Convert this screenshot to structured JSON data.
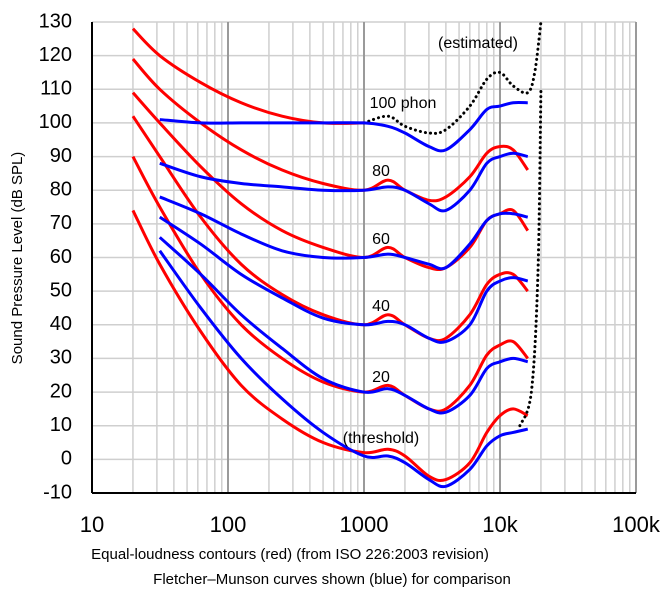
{
  "chart_data": {
    "type": "line",
    "y_label": "Sound Pressure Level (dB SPL)",
    "captions": [
      "Equal-loudness contours (red) (from ISO 226:2003 revision)",
      "Fletcher–Munson curves shown (blue) for comparison"
    ],
    "x_log": true,
    "xlim": [
      10,
      100000
    ],
    "ylim": [
      -10,
      130
    ],
    "xticks": [
      10,
      100,
      1000,
      {
        "value": 10000,
        "label": "10k"
      },
      {
        "value": 100000,
        "label": "100k"
      }
    ],
    "yticks": [
      -10,
      0,
      10,
      20,
      30,
      40,
      50,
      60,
      70,
      80,
      90,
      100,
      110,
      120,
      130
    ],
    "xgrid_minor": [
      20,
      30,
      40,
      50,
      60,
      70,
      80,
      90,
      200,
      300,
      400,
      500,
      600,
      700,
      800,
      900,
      2000,
      3000,
      4000,
      5000,
      6000,
      7000,
      8000,
      9000,
      20000,
      30000,
      40000,
      50000,
      60000,
      70000,
      80000,
      90000
    ],
    "grid": true,
    "series": [
      {
        "color": "#ff0000",
        "style": "solid",
        "x": [
          20,
          31.5,
          63,
          125,
          250,
          500,
          1000,
          1500,
          2000,
          3000,
          4000,
          6000,
          8000,
          10000,
          12500,
          16000
        ],
        "values": [
          74,
          58,
          38,
          22,
          12,
          5,
          2,
          3,
          1,
          -5,
          -6,
          -1,
          8,
          13,
          15,
          13
        ]
      },
      {
        "color": "#ff0000",
        "style": "solid",
        "x": [
          20,
          31.5,
          63,
          125,
          250,
          500,
          1000,
          1500,
          2000,
          3000,
          4000,
          6000,
          8000,
          10000,
          12500,
          16000
        ],
        "values": [
          90,
          75,
          55,
          40,
          30,
          23,
          20,
          22,
          19,
          15,
          15,
          22,
          31,
          34,
          35,
          30
        ]
      },
      {
        "color": "#ff0000",
        "style": "solid",
        "x": [
          20,
          31.5,
          63,
          125,
          250,
          500,
          1000,
          1500,
          2000,
          3000,
          4000,
          6000,
          8000,
          10000,
          12500,
          16000
        ],
        "values": [
          102,
          90,
          72,
          58,
          49,
          43,
          40,
          43,
          40,
          36,
          36,
          43,
          52,
          55,
          55,
          50
        ]
      },
      {
        "color": "#ff0000",
        "style": "solid",
        "x": [
          20,
          31.5,
          63,
          125,
          250,
          500,
          1000,
          1500,
          2000,
          3000,
          4000,
          6000,
          8000,
          10000,
          12500,
          16000
        ],
        "values": [
          109,
          100,
          87,
          76,
          68,
          63,
          60,
          63,
          60,
          57,
          57,
          63,
          71,
          73,
          74,
          68
        ]
      },
      {
        "color": "#ff0000",
        "style": "solid",
        "x": [
          20,
          31.5,
          63,
          125,
          250,
          500,
          1000,
          1500,
          2000,
          3000,
          4000,
          6000,
          8000,
          10000,
          12500,
          16000
        ],
        "values": [
          119,
          110,
          100,
          92,
          86,
          82,
          80,
          83,
          80,
          77,
          78,
          84,
          91,
          93,
          92,
          86
        ]
      },
      {
        "color": "#ff0000",
        "style": "solid",
        "x": [
          20,
          31.5,
          63,
          125,
          250,
          500,
          1000
        ],
        "values": [
          128,
          120,
          112,
          106,
          102,
          100,
          100
        ]
      },
      {
        "color": "#000000",
        "style": "dotted",
        "x": [
          1000,
          1500,
          2000,
          3000,
          4000,
          6000,
          8000,
          10000,
          12500,
          16000,
          18000,
          20000
        ],
        "values": [
          100,
          102,
          99,
          97,
          98,
          105,
          113,
          115,
          111,
          109,
          115,
          130
        ]
      },
      {
        "color": "#000000",
        "style": "dotted",
        "x": [
          14000,
          17000,
          19000,
          20000
        ],
        "values": [
          10,
          20,
          55,
          110
        ]
      },
      {
        "color": "#0000ff",
        "style": "solid",
        "x": [
          31.5,
          63,
          125,
          250,
          500,
          1000,
          1500,
          2000,
          3000,
          4000,
          6000,
          8000,
          10000,
          12500,
          16000
        ],
        "values": [
          62,
          45,
          30,
          18,
          8,
          1,
          1,
          -1,
          -6,
          -8,
          -3,
          4,
          7,
          8,
          9
        ]
      },
      {
        "color": "#0000ff",
        "style": "solid",
        "x": [
          31.5,
          63,
          125,
          250,
          500,
          1000,
          1500,
          2000,
          3000,
          4000,
          6000,
          8000,
          10000,
          12500,
          16000
        ],
        "values": [
          66,
          55,
          43,
          33,
          24,
          20,
          21,
          19,
          15,
          14,
          19,
          27,
          29,
          30,
          29
        ]
      },
      {
        "color": "#0000ff",
        "style": "solid",
        "x": [
          31.5,
          63,
          125,
          250,
          500,
          1000,
          1500,
          2000,
          3000,
          4000,
          6000,
          8000,
          10000,
          12500,
          16000
        ],
        "values": [
          72,
          64,
          55,
          48,
          42,
          40,
          41,
          40,
          36,
          35,
          40,
          50,
          53,
          54,
          53
        ]
      },
      {
        "color": "#0000ff",
        "style": "solid",
        "x": [
          31.5,
          63,
          125,
          250,
          500,
          1000,
          1500,
          2000,
          3000,
          4000,
          6000,
          8000,
          10000,
          12500,
          16000
        ],
        "values": [
          78,
          73,
          67,
          62,
          60,
          60,
          61,
          60,
          58,
          57,
          64,
          71,
          73,
          73,
          72
        ]
      },
      {
        "color": "#0000ff",
        "style": "solid",
        "x": [
          31.5,
          63,
          125,
          250,
          500,
          1000,
          1500,
          2000,
          3000,
          4000,
          6000,
          8000,
          10000,
          12500,
          16000
        ],
        "values": [
          88,
          84,
          82,
          81,
          80,
          80,
          81,
          80,
          76,
          74,
          80,
          88,
          90,
          91,
          90
        ]
      },
      {
        "color": "#0000ff",
        "style": "solid",
        "x": [
          31.5,
          63,
          125,
          250,
          500,
          1000,
          1500,
          2000,
          3000,
          4000,
          6000,
          8000,
          10000,
          12500,
          16000
        ],
        "values": [
          101,
          100,
          100,
          100,
          100,
          100,
          99,
          97,
          93,
          92,
          98,
          104,
          105,
          106,
          106
        ]
      }
    ],
    "annotations": [
      "(estimated)",
      "100 phon",
      "80",
      "60",
      "40",
      "20",
      "(threshold)"
    ]
  }
}
